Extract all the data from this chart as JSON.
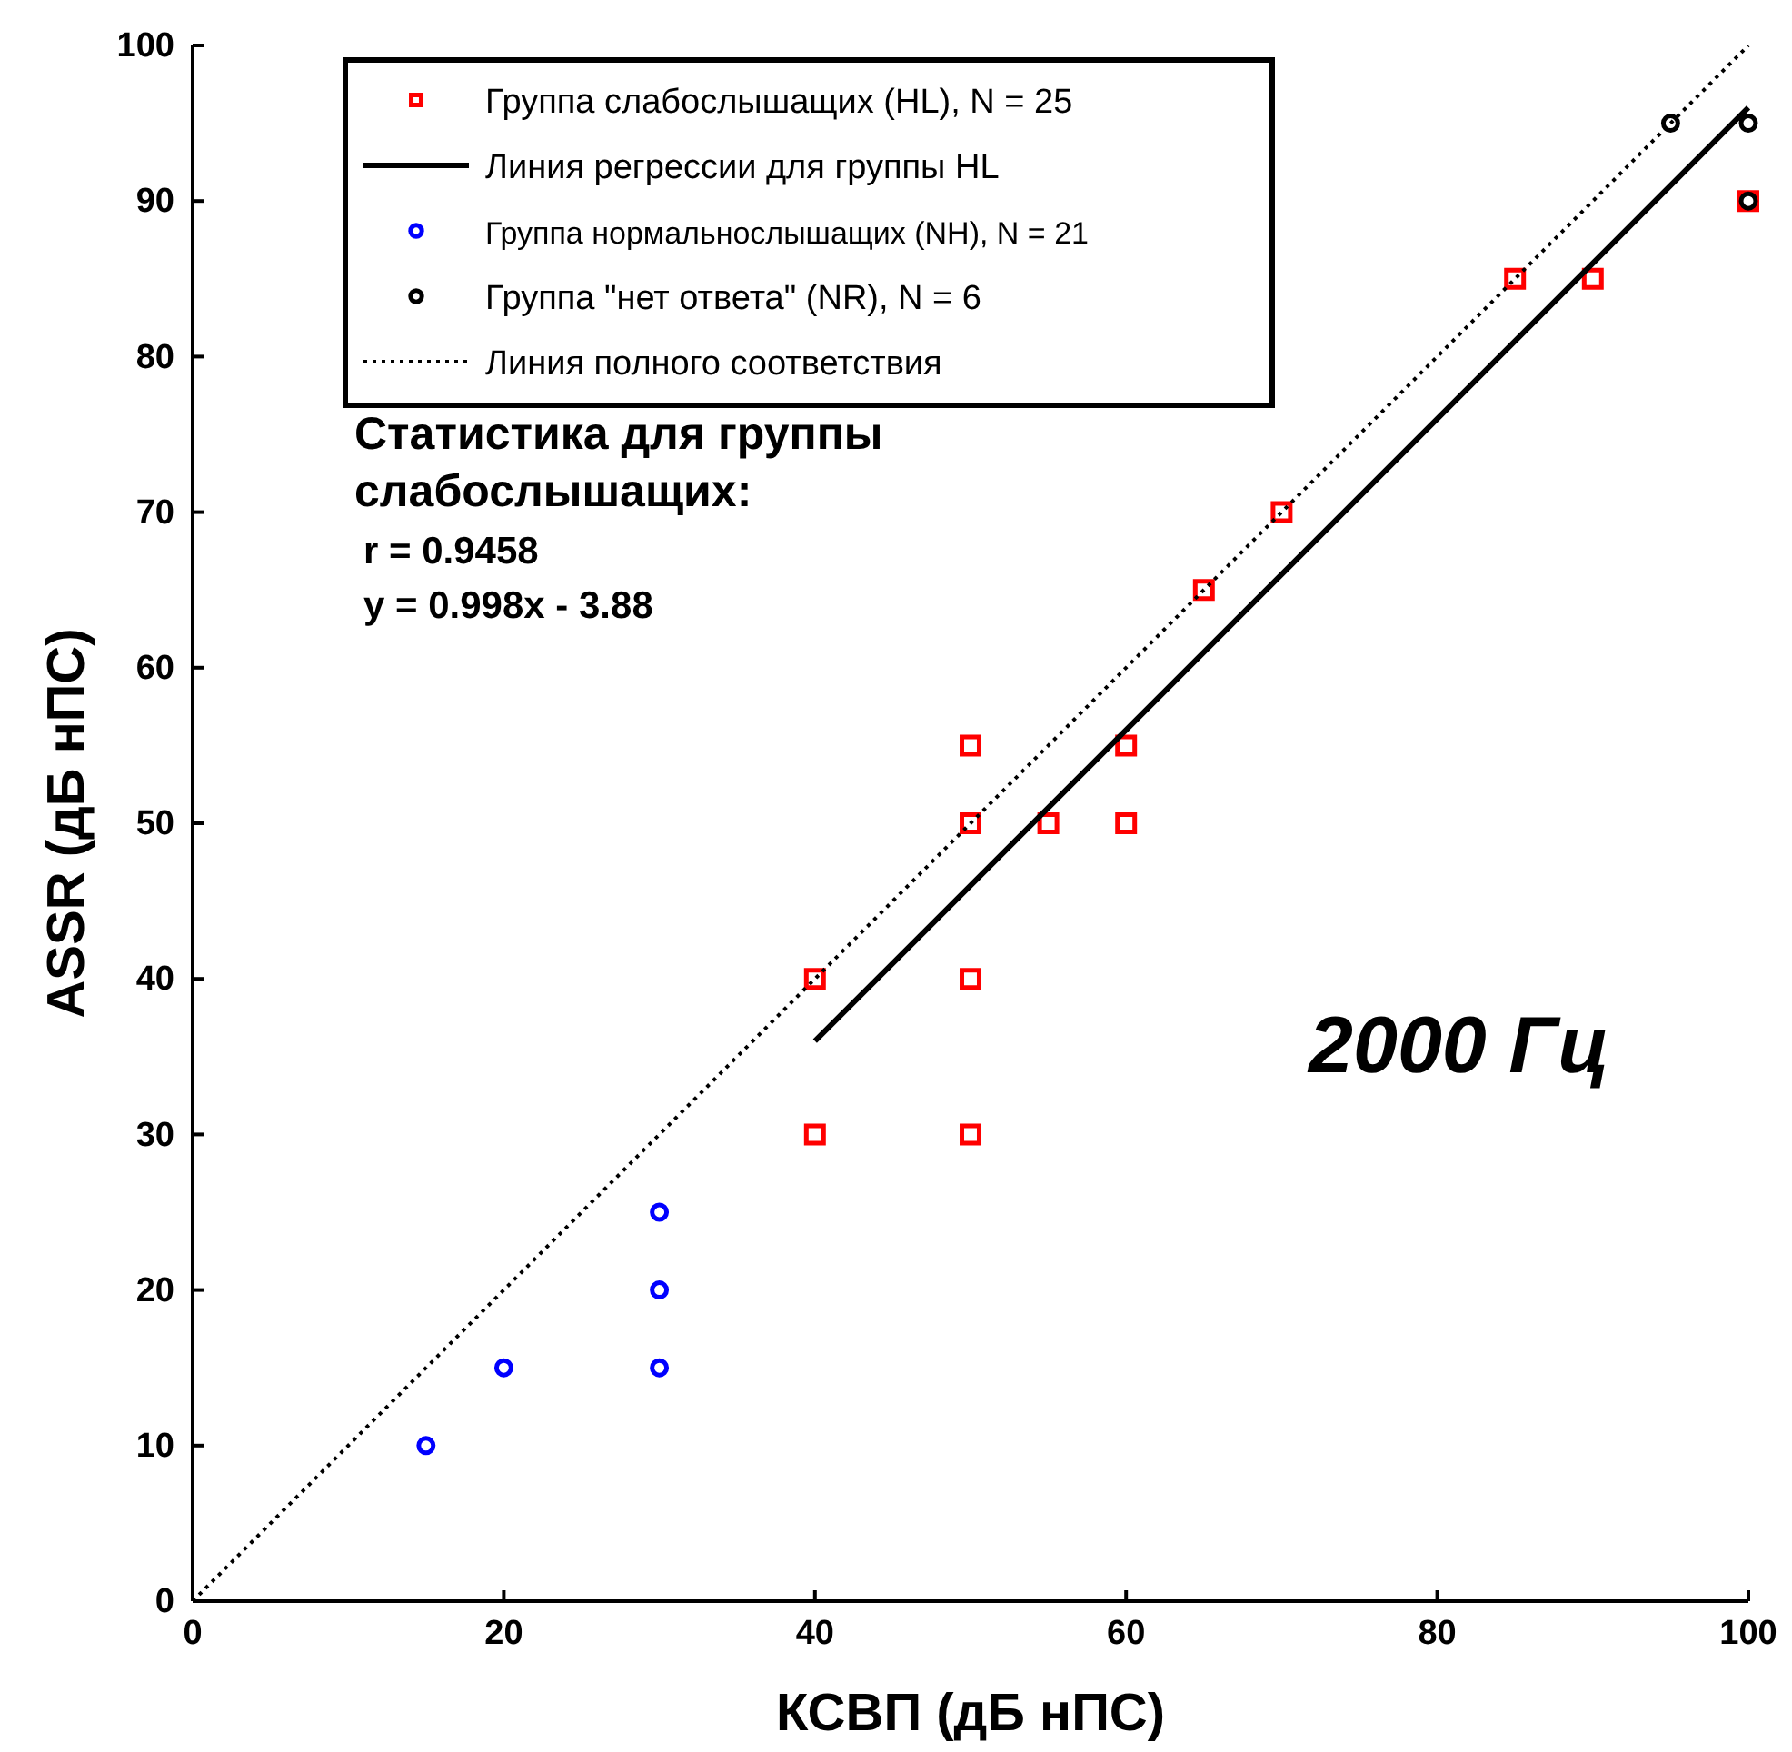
{
  "chart_data": {
    "type": "scatter",
    "xlabel": "КСВП (дБ нПС)",
    "ylabel": "ASSR (дБ нПС)",
    "xlim": [
      0,
      100
    ],
    "ylim": [
      0,
      100
    ],
    "xticks": [
      0,
      20,
      40,
      60,
      80,
      100
    ],
    "yticks": [
      0,
      10,
      20,
      30,
      40,
      50,
      60,
      70,
      80,
      90,
      100
    ],
    "grid": false,
    "legend": "top",
    "annotations": [
      "Статистика для группы слабослышащих:",
      "r = 0.9458",
      "y = 0.998x - 3.88",
      "2000 Гц"
    ],
    "series": [
      {
        "name": "Группа слабослышащих (HL), N = 25",
        "marker": "square",
        "color": "#ff0000",
        "x": [
          40,
          40,
          50,
          50,
          50,
          50,
          55,
          60,
          60,
          65,
          70,
          85,
          90,
          100
        ],
        "values": [
          40,
          30,
          55,
          50,
          40,
          30,
          50,
          55,
          50,
          65,
          70,
          85,
          85,
          90
        ]
      },
      {
        "name": "Линия регрессии для группы HL",
        "type": "line",
        "line_style": "solid",
        "color": "#000000",
        "x": [
          40,
          100
        ],
        "values": [
          36,
          96
        ]
      },
      {
        "name": "Группа нормальнослышащих (NH), N = 21",
        "type": "scatter",
        "marker": "circle",
        "color": "#0000ff",
        "x": [
          15,
          20,
          30,
          30,
          30
        ],
        "values": [
          10,
          15,
          25,
          20,
          15
        ]
      },
      {
        "name": "Группа \"нет ответа\" (NR), N = 6",
        "type": "scatter",
        "marker": "circle",
        "color": "#000000",
        "x": [
          95,
          100,
          100
        ],
        "values": [
          95,
          95,
          90
        ]
      },
      {
        "name": "Линия полного соответствия",
        "type": "line",
        "line_style": "dotted",
        "color": "#000000",
        "x": [
          0,
          100
        ],
        "values": [
          0,
          100
        ]
      }
    ]
  }
}
